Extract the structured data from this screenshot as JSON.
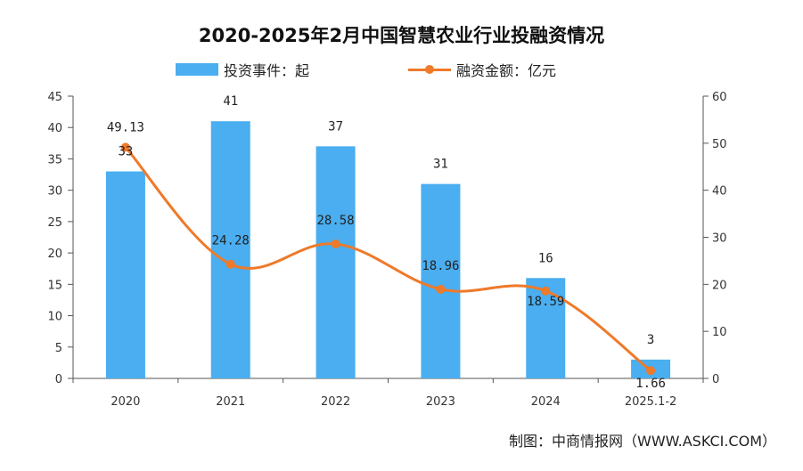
{
  "chart_data": {
    "type": "bar",
    "title": "2020-2025年2月中国智慧农业行业投融资情况",
    "categories": [
      "2020",
      "2021",
      "2022",
      "2023",
      "2024",
      "2025.1-2"
    ],
    "series": [
      {
        "name": "投资事件：起",
        "type": "bar",
        "axis": "left",
        "values": [
          33,
          41,
          37,
          31,
          16,
          3
        ],
        "labels": [
          "33",
          "41",
          "37",
          "31",
          "16",
          "3"
        ]
      },
      {
        "name": "融资金额：亿元",
        "type": "line",
        "axis": "right",
        "values": [
          49.13,
          24.28,
          28.58,
          18.96,
          18.59,
          1.66
        ],
        "labels": [
          "49.13",
          "24.28",
          "28.58",
          "18.96",
          "18.59",
          "1.66"
        ]
      }
    ],
    "y_left": {
      "min": 0,
      "max": 45,
      "ticks": [
        "0",
        "5",
        "10",
        "15",
        "20",
        "25",
        "30",
        "35",
        "40",
        "45"
      ]
    },
    "y_right": {
      "min": 0,
      "max": 60,
      "ticks": [
        "0",
        "10",
        "20",
        "30",
        "40",
        "50",
        "60"
      ]
    },
    "colors": {
      "bar": "#4aaef0",
      "line": "#ee7a2a"
    },
    "legend": "top"
  },
  "legend": {
    "bar_label": "投资事件：起",
    "line_label": "融资金额：亿元"
  },
  "source": "制图：中商情报网（WWW.ASKCI.COM）"
}
